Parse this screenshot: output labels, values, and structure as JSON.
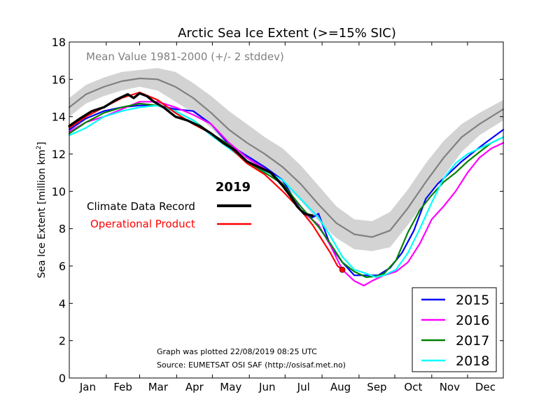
{
  "chart_data": {
    "type": "line",
    "title": "Arctic Sea Ice Extent (>=15% SIC)",
    "ylabel_text": "Sea Ice Extent [million km",
    "ylabel_sup": "2",
    "ylabel_end": "]",
    "xlabel": "",
    "ylim": [
      0,
      18
    ],
    "yticks": [
      "0",
      "2",
      "4",
      "6",
      "8",
      "10",
      "12",
      "14",
      "16",
      "18"
    ],
    "months": [
      "Jan",
      "Feb",
      "Mar",
      "Apr",
      "May",
      "Jun",
      "Jul",
      "Aug",
      "Sep",
      "Oct",
      "Nov",
      "Dec"
    ],
    "mean_label": "Mean Value 1981-2000 (+/- 2 stddev)",
    "mean": {
      "name": "Mean Value 1981-2000",
      "color": "#808080",
      "x": [
        1,
        15,
        30,
        45,
        60,
        75,
        90,
        105,
        120,
        135,
        150,
        165,
        180,
        195,
        210,
        225,
        240,
        255,
        270,
        285,
        300,
        315,
        330,
        345,
        365
      ],
      "y": [
        14.5,
        15.2,
        15.6,
        15.9,
        16.05,
        16.0,
        15.6,
        15.0,
        14.2,
        13.3,
        12.6,
        12.0,
        11.3,
        10.4,
        9.3,
        8.3,
        7.7,
        7.55,
        7.9,
        9.1,
        10.5,
        11.8,
        12.9,
        13.6,
        14.4
      ],
      "upper": [
        15.0,
        15.7,
        16.1,
        16.4,
        16.5,
        16.6,
        16.4,
        15.8,
        15.1,
        14.3,
        13.6,
        12.9,
        12.3,
        11.4,
        10.3,
        9.2,
        8.5,
        8.4,
        8.9,
        10.1,
        11.5,
        12.7,
        13.6,
        14.2,
        14.9
      ],
      "lower": [
        14.0,
        14.7,
        15.1,
        15.4,
        15.6,
        15.4,
        14.8,
        14.2,
        13.4,
        12.4,
        11.7,
        11.1,
        10.4,
        9.5,
        8.4,
        7.5,
        6.9,
        6.8,
        7.0,
        8.2,
        9.5,
        10.8,
        12.1,
        13.0,
        13.8
      ]
    },
    "legend2019": {
      "title": "2019",
      "cdr_label": "Climate Data Record",
      "op_label": "Operational Product"
    },
    "series": [
      {
        "name": "2015",
        "color": "#0000ff",
        "width": 2.2,
        "x": [
          1,
          15,
          30,
          45,
          60,
          75,
          90,
          105,
          120,
          135,
          150,
          165,
          180,
          195,
          205,
          210,
          220,
          230,
          240,
          250,
          260,
          270,
          280,
          290,
          300,
          310,
          320,
          330,
          340,
          350,
          365
        ],
        "y": [
          13.3,
          13.9,
          14.3,
          14.5,
          14.6,
          14.6,
          14.4,
          14.3,
          13.6,
          12.5,
          11.9,
          11.3,
          10.6,
          9.0,
          8.6,
          8.8,
          7.1,
          6.2,
          5.5,
          5.5,
          5.5,
          5.9,
          6.7,
          7.9,
          9.6,
          10.4,
          11.0,
          11.6,
          12.1,
          12.6,
          13.3
        ]
      },
      {
        "name": "2016",
        "color": "#ff00ff",
        "width": 2.2,
        "x": [
          1,
          15,
          30,
          45,
          60,
          75,
          90,
          105,
          120,
          135,
          150,
          165,
          180,
          195,
          210,
          220,
          230,
          240,
          248,
          255,
          265,
          275,
          285,
          295,
          305,
          315,
          325,
          335,
          345,
          355,
          365
        ],
        "y": [
          13.2,
          13.7,
          14.0,
          14.4,
          14.8,
          14.8,
          14.5,
          14.1,
          13.6,
          12.6,
          11.8,
          11.2,
          10.4,
          9.0,
          8.2,
          7.1,
          5.8,
          5.2,
          4.95,
          5.2,
          5.5,
          5.7,
          6.2,
          7.2,
          8.5,
          9.2,
          10.0,
          11.0,
          11.8,
          12.3,
          12.6
        ]
      },
      {
        "name": "2017",
        "color": "#008000",
        "width": 2.2,
        "x": [
          1,
          15,
          30,
          45,
          60,
          75,
          90,
          105,
          120,
          135,
          150,
          165,
          180,
          195,
          210,
          220,
          230,
          240,
          250,
          258,
          265,
          275,
          285,
          295,
          305,
          315,
          325,
          335,
          345,
          355,
          365
        ],
        "y": [
          13.1,
          13.7,
          14.2,
          14.5,
          14.7,
          14.6,
          14.3,
          13.8,
          13.1,
          12.5,
          11.6,
          11.0,
          10.4,
          9.2,
          8.1,
          7.2,
          6.2,
          5.7,
          5.4,
          5.45,
          5.6,
          6.3,
          7.8,
          9.0,
          9.8,
          10.5,
          11.0,
          11.6,
          12.1,
          12.6,
          12.9
        ]
      },
      {
        "name": "2018",
        "color": "#00ffff",
        "width": 2.2,
        "x": [
          1,
          15,
          30,
          45,
          60,
          75,
          90,
          105,
          120,
          135,
          150,
          165,
          180,
          195,
          210,
          220,
          230,
          240,
          250,
          258,
          265,
          275,
          285,
          295,
          305,
          315,
          325,
          335,
          345,
          355,
          365
        ],
        "y": [
          13.0,
          13.4,
          14.0,
          14.3,
          14.5,
          14.6,
          14.3,
          13.8,
          13.0,
          12.3,
          11.6,
          11.1,
          10.6,
          9.6,
          8.6,
          7.6,
          6.5,
          5.8,
          5.6,
          5.4,
          5.5,
          5.8,
          6.7,
          8.0,
          9.4,
          10.7,
          11.5,
          12.0,
          12.3,
          12.6,
          12.9
        ]
      },
      {
        "name": "2019 Operational Product",
        "color": "#ff0000",
        "width": 2.2,
        "x": [
          1,
          15,
          30,
          45,
          60,
          75,
          90,
          105,
          120,
          135,
          150,
          165,
          180,
          195,
          205,
          212,
          220,
          226,
          230
        ],
        "y": [
          13.4,
          14.0,
          14.5,
          15.0,
          15.3,
          14.9,
          14.2,
          13.6,
          13.1,
          12.4,
          11.5,
          10.9,
          10.0,
          9.0,
          8.2,
          7.5,
          6.7,
          6.0,
          5.8
        ]
      },
      {
        "name": "2019 Climate Data Record",
        "color": "#000000",
        "width": 3.4,
        "x": [
          1,
          10,
          20,
          30,
          40,
          50,
          55,
          60,
          66,
          72,
          80,
          90,
          100,
          110,
          120,
          130,
          140,
          150,
          160,
          170,
          180,
          187,
          192,
          198,
          205
        ],
        "y": [
          13.5,
          13.9,
          14.3,
          14.5,
          14.9,
          15.2,
          15.0,
          15.25,
          15.1,
          14.8,
          14.5,
          14.0,
          13.8,
          13.5,
          13.1,
          12.6,
          12.2,
          11.6,
          11.3,
          11.0,
          10.3,
          9.7,
          9.2,
          8.8,
          8.7
        ]
      }
    ],
    "latest_point": {
      "x": 230,
      "y": 5.8
    },
    "note_plotted": "Graph was plotted 22/08/2019 08:25 UTC",
    "note_source": "Source: EUMETSAT OSI SAF (http://osisaf.met.no)"
  }
}
